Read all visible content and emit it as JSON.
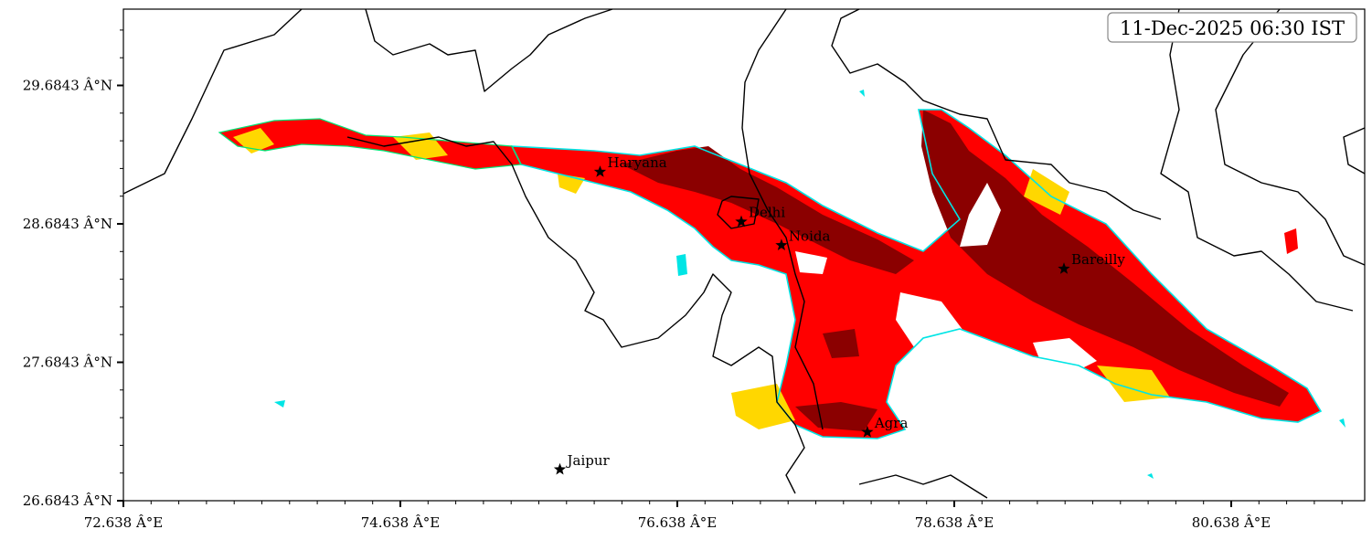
{
  "timestamp": "11-Dec-2025 06:30 IST",
  "axes": {
    "x_ticks": [
      "72.638 Â°E",
      "74.638 Â°E",
      "76.638 Â°E",
      "78.638 Â°E",
      "80.638 Â°E"
    ],
    "y_ticks": [
      "29.6843 Â°N",
      "28.6843 Â°N",
      "27.6843 Â°N",
      "26.6843 Â°N"
    ],
    "lon_range": [
      72.638,
      81.6
    ],
    "lat_range": [
      26.6843,
      30.24
    ]
  },
  "cities": [
    {
      "name": "Haryana",
      "lon": 76.08,
      "lat": 29.06
    },
    {
      "name": "Delhi",
      "lon": 77.1,
      "lat": 28.7
    },
    {
      "name": "Noida",
      "lon": 77.39,
      "lat": 28.53
    },
    {
      "name": "Bareilly",
      "lon": 79.43,
      "lat": 28.36
    },
    {
      "name": "Agra",
      "lon": 78.01,
      "lat": 27.18
    },
    {
      "name": "Jaipur",
      "lon": 75.79,
      "lat": 26.91
    }
  ],
  "colors": {
    "dense_fog": "#8b0000",
    "moderate_fog": "#ff0000",
    "light_fog": "#ffd700",
    "edge_cyan": "#00e5e5",
    "edge_green": "#00e676",
    "marker": "#000000"
  }
}
